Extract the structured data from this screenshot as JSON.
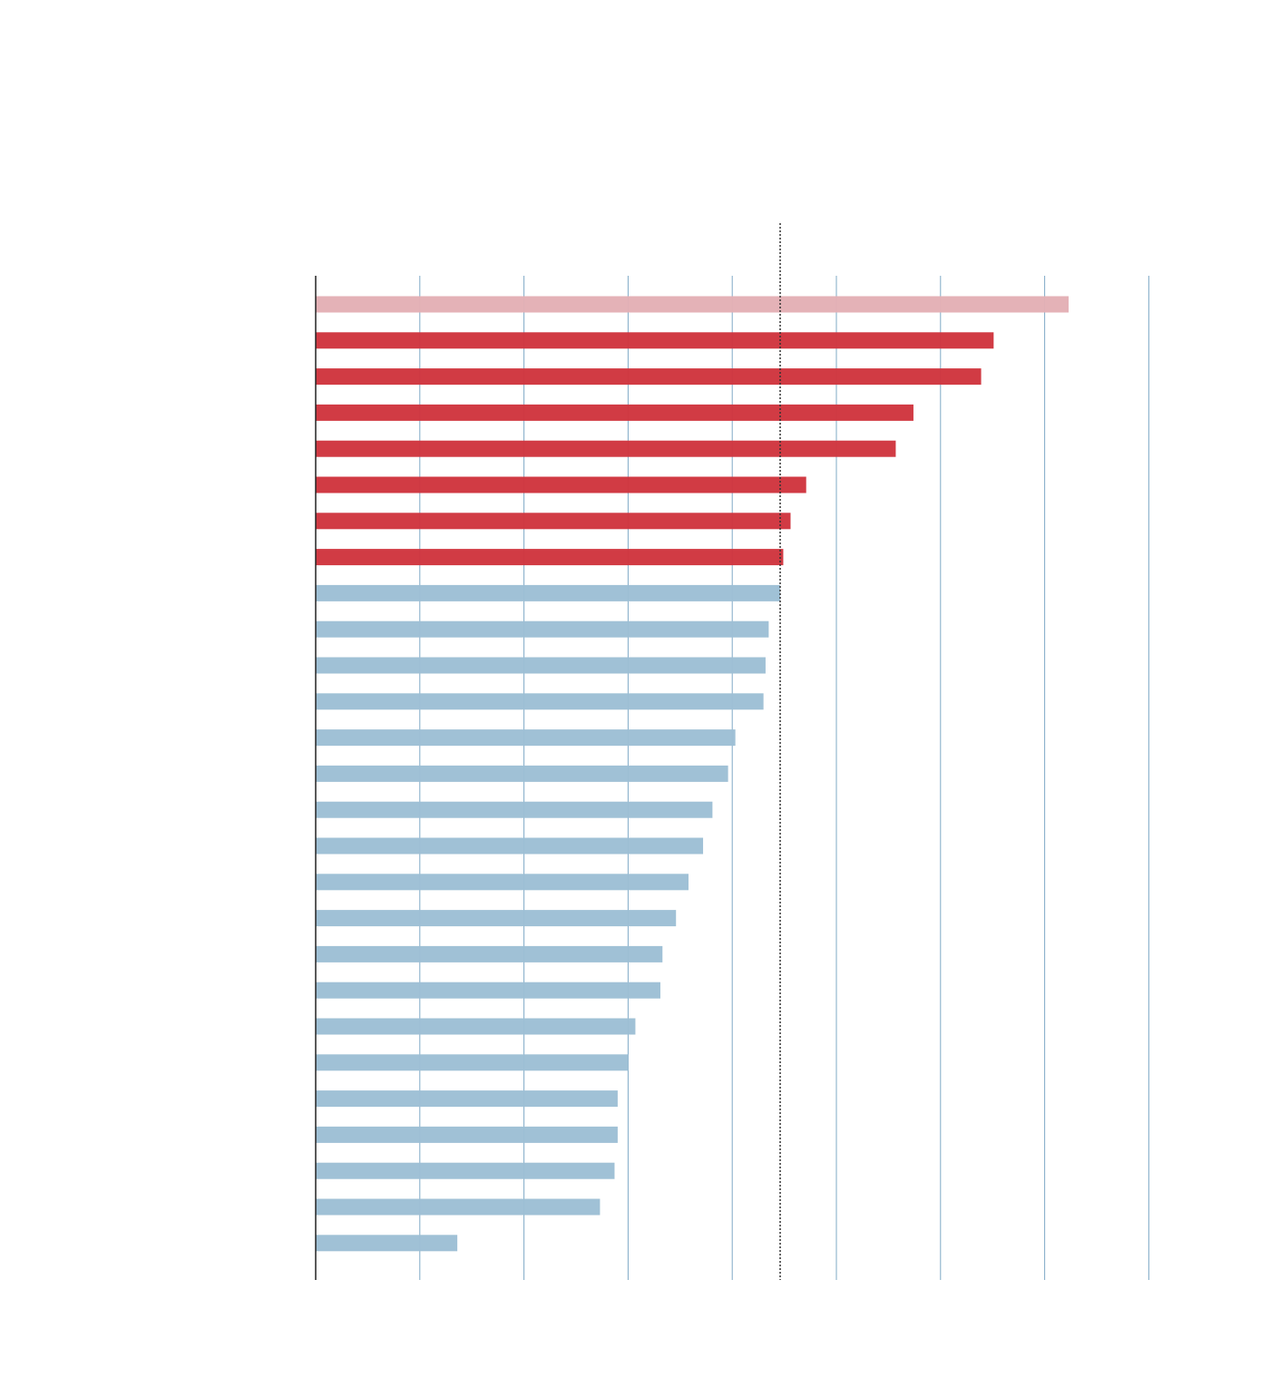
{
  "chart_data": {
    "type": "bar",
    "orientation": "horizontal",
    "title": "",
    "xlabel": "",
    "ylabel": "",
    "xlim": [
      0,
      8
    ],
    "grid": true,
    "tick_values": [
      0,
      1,
      2,
      3,
      4,
      5,
      6,
      7,
      8
    ],
    "reference_line": {
      "value": 4.46,
      "style": "dotted"
    },
    "categories": [
      "",
      "",
      "",
      "",
      "",
      "",
      "",
      "",
      "",
      "",
      "",
      "",
      "",
      "",
      "",
      "",
      "",
      "",
      "",
      "",
      "",
      "",
      "",
      "",
      "",
      "",
      ""
    ],
    "values": [
      7.23,
      6.51,
      6.39,
      5.74,
      5.57,
      4.71,
      4.56,
      4.49,
      4.46,
      4.35,
      4.32,
      4.3,
      4.03,
      3.96,
      3.81,
      3.72,
      3.58,
      3.46,
      3.33,
      3.31,
      3.07,
      3.0,
      2.9,
      2.9,
      2.87,
      2.73,
      1.36
    ],
    "bar_groups": [
      "highlight",
      "above",
      "above",
      "above",
      "above",
      "above",
      "above",
      "above",
      "below",
      "below",
      "below",
      "below",
      "below",
      "below",
      "below",
      "below",
      "below",
      "below",
      "below",
      "below",
      "below",
      "below",
      "below",
      "below",
      "below",
      "below",
      "below"
    ],
    "colors": {
      "highlight": "#e3b0b5",
      "above": "#cf353e",
      "below": "#9dbfd5",
      "gridline": "#7fa9c6",
      "axis": "#222222",
      "reference": "#333333"
    }
  }
}
